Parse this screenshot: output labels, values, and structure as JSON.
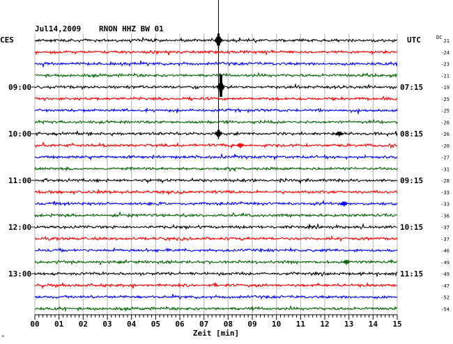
{
  "header": {
    "date": "Jul14,2009",
    "station": "RNON HHZ BW 01",
    "left_tz": "CES",
    "right_tz": "UTC",
    "dc_label": "DC"
  },
  "chart_data": {
    "type": "line",
    "title": "Jul14,2009   RNON HHZ BW 01",
    "xlabel": "Zeit [min]",
    "x_ticks": [
      "00",
      "01",
      "02",
      "03",
      "04",
      "05",
      "06",
      "07",
      "08",
      "09",
      "10",
      "11",
      "12",
      "13",
      "14",
      "15"
    ],
    "xlim": [
      0,
      15
    ],
    "trace_colors": [
      "#000000",
      "#ff0000",
      "#0000ff",
      "#006400"
    ],
    "rows_per_label": 4,
    "left_time_labels": [
      "09:00",
      "10:00",
      "11:00",
      "12:00",
      "13:00"
    ],
    "right_time_labels": [
      "07:15",
      "08:15",
      "09:15",
      "10:15",
      "11:15"
    ],
    "left_label_rows": [
      4,
      8,
      12,
      16,
      20
    ],
    "dc_offsets": [
      "21",
      "-24",
      "-23",
      "-21",
      "-19",
      "-25",
      "-25",
      "-26",
      "-26",
      "-20",
      "-27",
      "-31",
      "-28",
      "-33",
      "-33",
      "-36",
      "-37",
      "-37",
      "-46",
      "-49",
      "-49",
      "-47",
      "-52",
      "-54"
    ],
    "events": [
      {
        "row": 0,
        "minute": 7.6,
        "amplitude": "large",
        "note": "vertical spike above plot"
      },
      {
        "row": 4,
        "minute": 7.7,
        "amplitude": "large"
      },
      {
        "row": 8,
        "minute": 7.6,
        "amplitude": "medium"
      },
      {
        "row": 9,
        "minute": 8.5,
        "amplitude": "small"
      },
      {
        "row": 8,
        "minute": 12.6,
        "amplitude": "small"
      },
      {
        "row": 14,
        "minute": 12.8,
        "amplitude": "small"
      },
      {
        "row": 19,
        "minute": 12.9,
        "amplitude": "small"
      }
    ]
  }
}
